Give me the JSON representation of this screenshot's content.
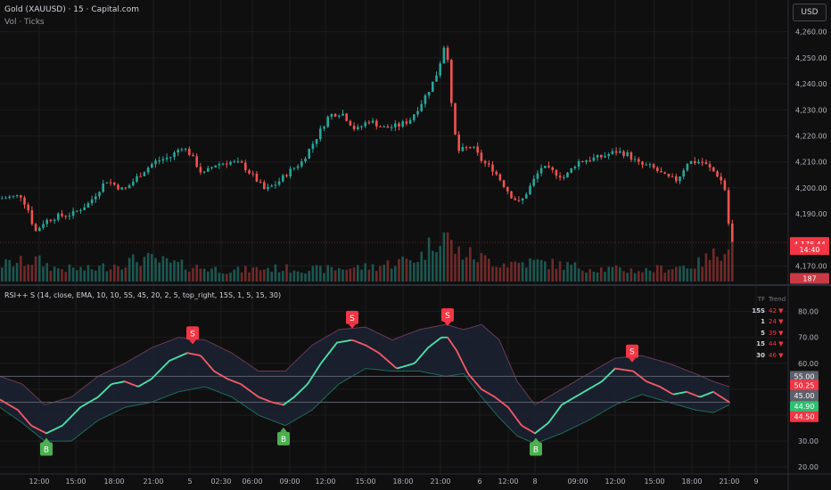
{
  "header": {
    "title": "Gold (XAUUSD) · 15 · Capital.com",
    "vol_label": "Vol · Ticks",
    "currency_button": "USD",
    "indicator_label": "RSI++ S (14, close, EMA, 10, 10, 5S, 45, 20, 2, 5, top_right, 15S, 1, 5, 15, 30)"
  },
  "colors": {
    "up": "#26a69a",
    "down": "#ef5350",
    "rsi_up": "#4be0a8",
    "rsi_down": "#f05a66",
    "band_fill": "#1b2233",
    "sell_badge": "#f23645",
    "buy_badge": "#4caf50",
    "background": "#0f0f0f",
    "grid": "#1c1c1c"
  },
  "price_axis": {
    "ticks": [
      "4,260.00",
      "4,250.00",
      "4,240.00",
      "4,230.00",
      "4,220.00",
      "4,210.00",
      "4,200.00",
      "4,190.00",
      "4,170.00"
    ],
    "tick_values": [
      4260,
      4250,
      4240,
      4230,
      4220,
      4210,
      4200,
      4190,
      4170
    ],
    "range": [
      4164,
      4264
    ],
    "badges": [
      {
        "text": "4,179.04",
        "value": 4179.04,
        "color": "#f23645"
      },
      {
        "text": "4,178.44",
        "value": 4178.44,
        "color": "#f23645"
      },
      {
        "text": "14:40",
        "value": 4176.3,
        "color": "#f23645"
      },
      {
        "text": "187",
        "value": 4165.2,
        "color": "#c93a44"
      }
    ]
  },
  "rsi_axis": {
    "ticks": [
      "80.00",
      "70.00",
      "60.00",
      "50.00",
      "40.00",
      "30.00",
      "20.00"
    ],
    "tick_values": [
      80,
      70,
      60,
      50,
      40,
      30,
      20
    ],
    "range": [
      18,
      84
    ],
    "levels": [
      55,
      45
    ],
    "badges": [
      {
        "text": "55.00",
        "value": 55,
        "color": "#5d606b"
      },
      {
        "text": "50.25",
        "value": 51.6,
        "color": "#f23645"
      },
      {
        "text": "45.00",
        "value": 47.5,
        "color": "#5d606b"
      },
      {
        "text": "44.90",
        "value": 43.4,
        "color": "#2fbf71"
      },
      {
        "text": "44.50",
        "value": 39.4,
        "color": "#f23645"
      }
    ]
  },
  "time_axis": {
    "labels": [
      "12:00",
      "15:00",
      "18:00",
      "21:00",
      "5",
      "02:30",
      "06:00",
      "09:00",
      "12:00",
      "15:00",
      "18:00",
      "21:00",
      "6",
      "12:00",
      "8",
      "09:00",
      "12:00",
      "15:00",
      "18:00",
      "21:00",
      "9"
    ],
    "positions": [
      44,
      85,
      128,
      172,
      213,
      248,
      283,
      325,
      365,
      410,
      452,
      494,
      538,
      570,
      600,
      648,
      690,
      734,
      776,
      818,
      848
    ]
  },
  "mtf_table": {
    "header": [
      "TF",
      "Trend"
    ],
    "rows": [
      {
        "tf": "15S",
        "value": "42 ▼"
      },
      {
        "tf": "1",
        "value": "24 ▼"
      },
      {
        "tf": "5",
        "value": "39 ▼"
      },
      {
        "tf": "15",
        "value": "44 ▼"
      },
      {
        "tf": "30",
        "value": "46 ▼"
      }
    ]
  },
  "signals": [
    {
      "type": "S",
      "label": "S",
      "x": 216,
      "rsi": 66
    },
    {
      "type": "S",
      "label": "S",
      "x": 395,
      "rsi": 72
    },
    {
      "type": "S",
      "label": "S",
      "x": 502,
      "rsi": 73
    },
    {
      "type": "S",
      "label": "S",
      "x": 709,
      "rsi": 59
    },
    {
      "type": "B",
      "label": "B",
      "x": 52,
      "rsi": 34
    },
    {
      "type": "B",
      "label": "B",
      "x": 318,
      "rsi": 38
    },
    {
      "type": "B",
      "label": "B",
      "x": 601,
      "rsi": 34
    }
  ],
  "chart_data": [
    {
      "type": "candlestick",
      "title": "Gold (XAUUSD) · 15 · Capital.com",
      "ylim": [
        4164,
        4264
      ],
      "price_path": [
        [
          0,
          4196
        ],
        [
          22,
          4197
        ],
        [
          30,
          4192
        ],
        [
          38,
          4183
        ],
        [
          48,
          4187
        ],
        [
          62,
          4189
        ],
        [
          80,
          4190
        ],
        [
          98,
          4194
        ],
        [
          118,
          4203
        ],
        [
          138,
          4199
        ],
        [
          155,
          4205
        ],
        [
          172,
          4210
        ],
        [
          190,
          4212
        ],
        [
          203,
          4216
        ],
        [
          212,
          4213
        ],
        [
          226,
          4205
        ],
        [
          240,
          4209
        ],
        [
          256,
          4210
        ],
        [
          270,
          4209
        ],
        [
          284,
          4204
        ],
        [
          296,
          4199
        ],
        [
          310,
          4202
        ],
        [
          322,
          4206
        ],
        [
          337,
          4210
        ],
        [
          353,
          4219
        ],
        [
          368,
          4228
        ],
        [
          382,
          4229
        ],
        [
          398,
          4222
        ],
        [
          412,
          4226
        ],
        [
          430,
          4223
        ],
        [
          446,
          4224
        ],
        [
          458,
          4226
        ],
        [
          470,
          4232
        ],
        [
          482,
          4239
        ],
        [
          490,
          4245
        ],
        [
          497,
          4255
        ],
        [
          501,
          4250
        ],
        [
          506,
          4227
        ],
        [
          512,
          4214
        ],
        [
          528,
          4216
        ],
        [
          540,
          4210
        ],
        [
          552,
          4207
        ],
        [
          562,
          4202
        ],
        [
          572,
          4197
        ],
        [
          582,
          4194
        ],
        [
          594,
          4201
        ],
        [
          606,
          4208
        ],
        [
          620,
          4206
        ],
        [
          632,
          4204
        ],
        [
          646,
          4210
        ],
        [
          660,
          4211
        ],
        [
          674,
          4212
        ],
        [
          690,
          4214
        ],
        [
          702,
          4213
        ],
        [
          716,
          4209
        ],
        [
          730,
          4208
        ],
        [
          746,
          4204
        ],
        [
          758,
          4203
        ],
        [
          770,
          4210
        ],
        [
          786,
          4210
        ],
        [
          800,
          4206
        ],
        [
          806,
          4204
        ],
        [
          812,
          4199
        ],
        [
          818,
          4179
        ]
      ]
    },
    {
      "type": "bar",
      "title": "Vol · Ticks",
      "note_values": "relative tick volume per bar, 0-1",
      "volume_peaks": [
        [
          0,
          0.28
        ],
        [
          40,
          0.35
        ],
        [
          60,
          0.22
        ],
        [
          100,
          0.2
        ],
        [
          160,
          0.38
        ],
        [
          210,
          0.25
        ],
        [
          260,
          0.18
        ],
        [
          300,
          0.22
        ],
        [
          360,
          0.2
        ],
        [
          420,
          0.25
        ],
        [
          470,
          0.4
        ],
        [
          495,
          0.85
        ],
        [
          510,
          0.5
        ],
        [
          560,
          0.3
        ],
        [
          600,
          0.32
        ],
        [
          660,
          0.22
        ],
        [
          720,
          0.18
        ],
        [
          780,
          0.28
        ],
        [
          805,
          0.48
        ],
        [
          818,
          0.72
        ]
      ]
    },
    {
      "type": "line",
      "title": "RSI++ S",
      "ylim": [
        18,
        84
      ],
      "levels": [
        55,
        45
      ],
      "rsi": [
        [
          0,
          46
        ],
        [
          20,
          42
        ],
        [
          35,
          36
        ],
        [
          52,
          33
        ],
        [
          70,
          36
        ],
        [
          90,
          43
        ],
        [
          110,
          47
        ],
        [
          125,
          52
        ],
        [
          140,
          53
        ],
        [
          155,
          51
        ],
        [
          170,
          54
        ],
        [
          190,
          61
        ],
        [
          210,
          64
        ],
        [
          225,
          63
        ],
        [
          240,
          57
        ],
        [
          255,
          54
        ],
        [
          270,
          52
        ],
        [
          290,
          47
        ],
        [
          305,
          45
        ],
        [
          318,
          44
        ],
        [
          330,
          47
        ],
        [
          345,
          52
        ],
        [
          360,
          60
        ],
        [
          378,
          68
        ],
        [
          395,
          69
        ],
        [
          410,
          67
        ],
        [
          425,
          64
        ],
        [
          445,
          58
        ],
        [
          465,
          60
        ],
        [
          480,
          66
        ],
        [
          495,
          70
        ],
        [
          502,
          70
        ],
        [
          512,
          65
        ],
        [
          525,
          56
        ],
        [
          540,
          50
        ],
        [
          555,
          47
        ],
        [
          570,
          43
        ],
        [
          585,
          36
        ],
        [
          600,
          33
        ],
        [
          615,
          37
        ],
        [
          630,
          44
        ],
        [
          645,
          47
        ],
        [
          660,
          50
        ],
        [
          675,
          53
        ],
        [
          690,
          58
        ],
        [
          710,
          57
        ],
        [
          725,
          53
        ],
        [
          740,
          51
        ],
        [
          755,
          48
        ],
        [
          770,
          49
        ],
        [
          785,
          47
        ],
        [
          800,
          49
        ],
        [
          818,
          45
        ]
      ],
      "band_upper": [
        [
          0,
          55
        ],
        [
          25,
          52
        ],
        [
          50,
          44
        ],
        [
          80,
          47
        ],
        [
          110,
          55
        ],
        [
          140,
          60
        ],
        [
          170,
          66
        ],
        [
          200,
          70
        ],
        [
          230,
          69
        ],
        [
          260,
          64
        ],
        [
          290,
          57
        ],
        [
          320,
          57
        ],
        [
          350,
          67
        ],
        [
          380,
          73
        ],
        [
          410,
          74
        ],
        [
          440,
          69
        ],
        [
          470,
          73
        ],
        [
          500,
          75
        ],
        [
          520,
          73
        ],
        [
          540,
          75
        ],
        [
          560,
          69
        ],
        [
          580,
          53
        ],
        [
          600,
          44
        ],
        [
          630,
          50
        ],
        [
          660,
          56
        ],
        [
          690,
          62
        ],
        [
          720,
          63
        ],
        [
          750,
          60
        ],
        [
          780,
          56
        ],
        [
          800,
          53
        ],
        [
          818,
          51
        ]
      ],
      "band_lower": [
        [
          0,
          43
        ],
        [
          25,
          37
        ],
        [
          50,
          30
        ],
        [
          80,
          30
        ],
        [
          110,
          38
        ],
        [
          140,
          43
        ],
        [
          170,
          45
        ],
        [
          200,
          49
        ],
        [
          230,
          51
        ],
        [
          260,
          47
        ],
        [
          290,
          40
        ],
        [
          320,
          36
        ],
        [
          350,
          42
        ],
        [
          380,
          52
        ],
        [
          410,
          58
        ],
        [
          440,
          57
        ],
        [
          470,
          57
        ],
        [
          500,
          55
        ],
        [
          520,
          56
        ],
        [
          540,
          47
        ],
        [
          560,
          39
        ],
        [
          580,
          32
        ],
        [
          600,
          29
        ],
        [
          630,
          33
        ],
        [
          660,
          38
        ],
        [
          690,
          44
        ],
        [
          720,
          48
        ],
        [
          750,
          45
        ],
        [
          780,
          42
        ],
        [
          800,
          41
        ],
        [
          818,
          44
        ]
      ]
    }
  ]
}
